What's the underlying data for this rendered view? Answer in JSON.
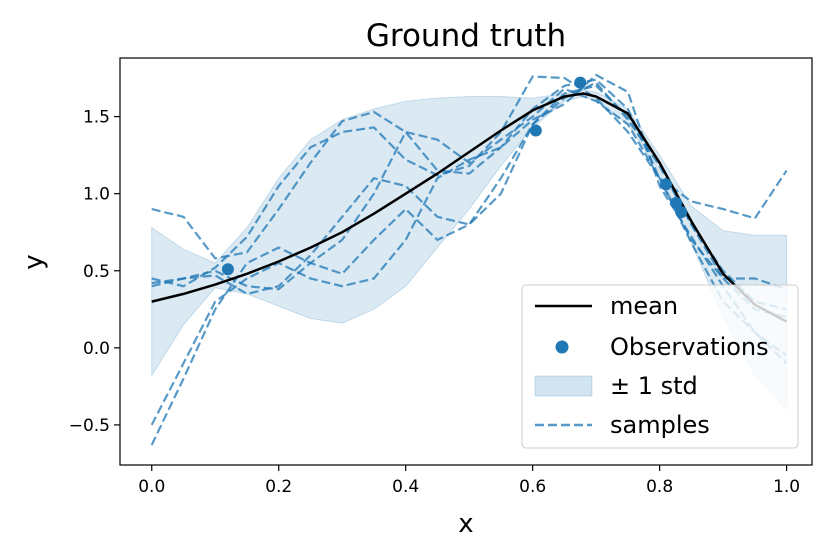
{
  "chart_data": {
    "type": "line",
    "title": "Ground truth",
    "xlabel": "x",
    "ylabel": "y",
    "xlim": [
      -0.05,
      1.04
    ],
    "ylim": [
      -0.76,
      1.88
    ],
    "x_ticks": [
      0.0,
      0.2,
      0.4,
      0.6,
      0.8,
      1.0
    ],
    "x_tick_labels": [
      "0.0",
      "0.2",
      "0.4",
      "0.6",
      "0.8",
      "1.0"
    ],
    "y_ticks": [
      -0.5,
      0.0,
      0.5,
      1.0,
      1.5
    ],
    "y_tick_labels": [
      "−0.5",
      "0.0",
      "0.5",
      "1.0",
      "1.5"
    ],
    "grid": false,
    "legend_position": "lower-right",
    "colors": {
      "mean": "#000000",
      "observations": "#1f77b4",
      "band": "#1f77b4",
      "samples": "#1f77b4"
    },
    "mean": {
      "name": "mean",
      "x": [
        0.0,
        0.05,
        0.1,
        0.15,
        0.2,
        0.25,
        0.3,
        0.35,
        0.4,
        0.45,
        0.5,
        0.55,
        0.6,
        0.65,
        0.68,
        0.7,
        0.75,
        0.8,
        0.85,
        0.9,
        0.95,
        1.0
      ],
      "y": [
        0.3,
        0.35,
        0.41,
        0.48,
        0.56,
        0.65,
        0.75,
        0.87,
        1.0,
        1.13,
        1.27,
        1.41,
        1.54,
        1.63,
        1.65,
        1.63,
        1.52,
        1.2,
        0.82,
        0.48,
        0.28,
        0.17
      ]
    },
    "observations": {
      "name": "Observations",
      "x": [
        0.12,
        0.605,
        0.675,
        0.81,
        0.826,
        0.834
      ],
      "y": [
        0.51,
        1.41,
        1.72,
        1.06,
        0.94,
        0.88
      ]
    },
    "std_band": {
      "name": "± 1 std",
      "x": [
        0.0,
        0.05,
        0.1,
        0.15,
        0.2,
        0.25,
        0.3,
        0.35,
        0.4,
        0.45,
        0.5,
        0.55,
        0.6,
        0.65,
        0.68,
        0.7,
        0.75,
        0.8,
        0.85,
        0.9,
        0.95,
        1.0
      ],
      "upper": [
        0.78,
        0.64,
        0.55,
        0.78,
        1.1,
        1.35,
        1.48,
        1.55,
        1.6,
        1.62,
        1.63,
        1.63,
        1.62,
        1.65,
        1.67,
        1.66,
        1.55,
        1.25,
        0.92,
        0.76,
        0.73,
        0.73
      ],
      "lower": [
        -0.18,
        0.15,
        0.39,
        0.35,
        0.27,
        0.19,
        0.16,
        0.25,
        0.4,
        0.65,
        0.9,
        1.18,
        1.43,
        1.6,
        1.63,
        1.6,
        1.45,
        1.14,
        0.68,
        0.2,
        -0.18,
        -0.4
      ]
    },
    "samples": {
      "name": "samples",
      "x": [
        0.0,
        0.05,
        0.1,
        0.15,
        0.2,
        0.25,
        0.3,
        0.35,
        0.4,
        0.45,
        0.5,
        0.55,
        0.6,
        0.65,
        0.7,
        0.75,
        0.8,
        0.85,
        0.9,
        0.95,
        1.0
      ],
      "series": [
        [
          0.9,
          0.85,
          0.58,
          0.62,
          0.9,
          1.2,
          1.47,
          1.53,
          1.4,
          1.15,
          1.13,
          1.3,
          1.55,
          1.7,
          1.74,
          1.55,
          1.1,
          0.95,
          0.9,
          0.84,
          1.15
        ],
        [
          0.45,
          0.4,
          0.52,
          0.72,
          1.05,
          1.3,
          1.4,
          1.43,
          1.22,
          1.12,
          1.18,
          1.4,
          1.76,
          1.75,
          1.62,
          1.4,
          1.1,
          0.7,
          0.45,
          0.45,
          0.38
        ],
        [
          -0.63,
          -0.2,
          0.25,
          0.55,
          0.65,
          0.55,
          0.48,
          0.7,
          0.9,
          0.7,
          0.8,
          1.1,
          1.45,
          1.62,
          1.72,
          1.48,
          1.18,
          0.8,
          0.5,
          0.3,
          0.25
        ],
        [
          -0.5,
          -0.1,
          0.3,
          0.45,
          0.55,
          0.45,
          0.4,
          0.45,
          0.7,
          1.1,
          1.22,
          1.3,
          1.48,
          1.58,
          1.77,
          1.66,
          1.05,
          0.72,
          0.4,
          0.1,
          -0.1
        ],
        [
          0.42,
          0.45,
          0.5,
          0.4,
          0.38,
          0.55,
          0.7,
          1.0,
          1.4,
          1.35,
          1.2,
          1.35,
          1.5,
          1.68,
          1.6,
          1.45,
          1.1,
          0.68,
          0.3,
          0.1,
          -0.05
        ],
        [
          0.4,
          0.45,
          0.47,
          0.35,
          0.4,
          0.6,
          0.85,
          1.1,
          1.05,
          0.85,
          0.8,
          1.0,
          1.45,
          1.65,
          1.7,
          1.5,
          1.2,
          0.8,
          0.45,
          0.25,
          0.2
        ]
      ]
    },
    "legend_labels": {
      "mean": "mean",
      "observations": "Observations",
      "band": "± 1 std",
      "samples": "samples"
    }
  }
}
